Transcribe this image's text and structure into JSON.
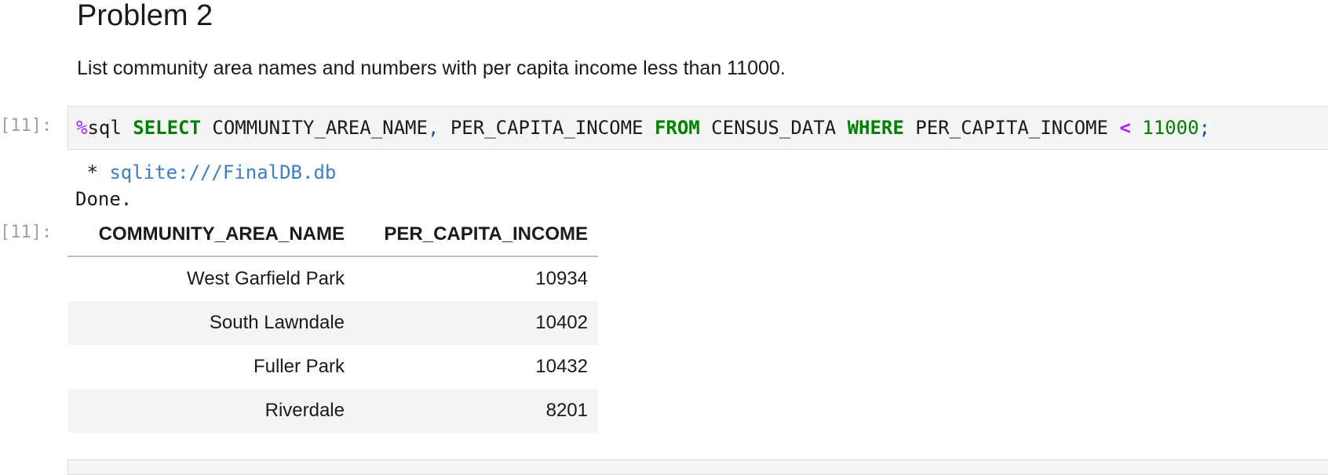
{
  "markdown": {
    "heading": "Problem 2",
    "description": "List community area names and numbers with per capita income less than 11000."
  },
  "code_cell": {
    "prompt": "[11]:",
    "tokens": {
      "magic_sign": "%",
      "magic_name": "sql ",
      "kw_select": "SELECT",
      "col1": " COMMUNITY_AREA_NAME",
      "comma": ",",
      "col2": " PER_CAPITA_INCOME ",
      "kw_from": "FROM",
      "table": " CENSUS_DATA ",
      "kw_where": "WHERE",
      "col3": " PER_CAPITA_INCOME ",
      "op": "<",
      "space": " ",
      "number": "11000",
      "semicolon": ";"
    }
  },
  "output": {
    "stdout_bullet": " * ",
    "connection": "sqlite:///FinalDB.db",
    "done": "Done.",
    "prompt": "[11]:",
    "table": {
      "headers": [
        "COMMUNITY_AREA_NAME",
        "PER_CAPITA_INCOME"
      ],
      "rows": [
        [
          "West Garfield Park",
          "10934"
        ],
        [
          "South Lawndale",
          "10402"
        ],
        [
          "Fuller Park",
          "10432"
        ],
        [
          "Riverdale",
          "8201"
        ]
      ]
    }
  }
}
